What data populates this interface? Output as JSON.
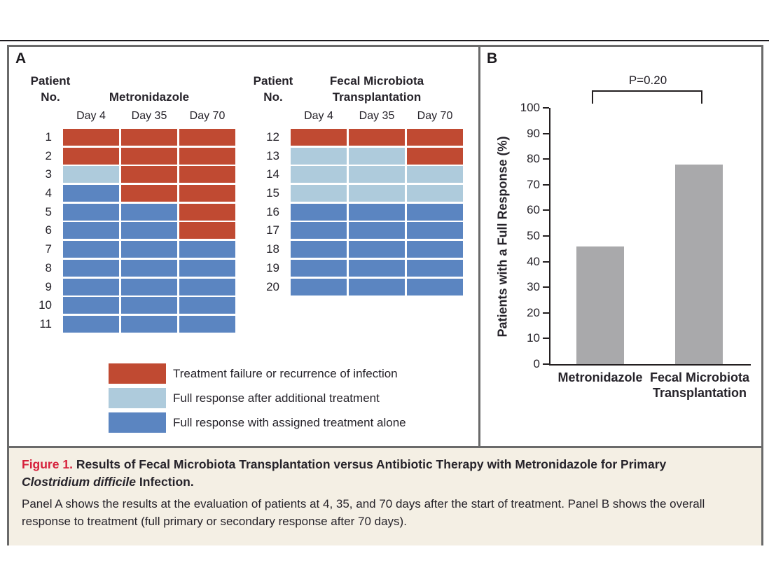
{
  "colors": {
    "failure": "#c04a32",
    "full_response_additional": "#aecbdc",
    "full_response_alone": "#5b85c1",
    "bar": "#a9a9ab",
    "border_gray": "#6a6a6a",
    "caption_bg": "#f4efe4",
    "figure_label_red": "#d6203b",
    "text": "#26232a"
  },
  "panel_a": {
    "label": "A",
    "patient_col_header": [
      "Patient",
      "No."
    ],
    "day_headers": [
      "Day 4",
      "Day 35",
      "Day 70"
    ],
    "grid_titles": [
      [
        "Metronidazole"
      ],
      [
        "Fecal Microbiota",
        "Transplantation"
      ]
    ],
    "legend": [
      {
        "key": "failure",
        "label": "Treatment failure or recurrence of infection"
      },
      {
        "key": "full_response_additional",
        "label": "Full response after additional treatment"
      },
      {
        "key": "full_response_alone",
        "label": "Full response with assigned treatment alone"
      }
    ]
  },
  "panel_b": {
    "label": "B",
    "p_value": "P=0.20",
    "ylabel": "Patients with a Full Response (%)",
    "categories": [
      [
        "Metronidazole"
      ],
      [
        "Fecal Microbiota",
        "Transplantation"
      ]
    ]
  },
  "caption": {
    "label": "Figure 1.",
    "title_main": "Results of Fecal Microbiota Transplantation versus Antibiotic Therapy with Metronidazole for Primary",
    "title_italic": "Clostridium difficile",
    "title_tail": "Infection.",
    "body": "Panel A shows the results at the evaluation of patients at 4, 35, and 70 days after the start of treatment. Panel B shows the overall response to treatment (full primary or secondary response after 70 days)."
  },
  "chart_data": [
    {
      "type": "heatmap",
      "title": "Metronidazole",
      "x": [
        "Day 4",
        "Day 35",
        "Day 70"
      ],
      "legend": {
        "failure": "Treatment failure or recurrence of infection",
        "full_response_additional": "Full response after additional treatment",
        "full_response_alone": "Full response with assigned treatment alone"
      },
      "rows": [
        {
          "patient": "1",
          "cells": [
            "failure",
            "failure",
            "failure"
          ]
        },
        {
          "patient": "2",
          "cells": [
            "failure",
            "failure",
            "failure"
          ]
        },
        {
          "patient": "3",
          "cells": [
            "full_response_additional",
            "failure",
            "failure"
          ]
        },
        {
          "patient": "4",
          "cells": [
            "full_response_alone",
            "failure",
            "failure"
          ]
        },
        {
          "patient": "5",
          "cells": [
            "full_response_alone",
            "full_response_alone",
            "failure"
          ]
        },
        {
          "patient": "6",
          "cells": [
            "full_response_alone",
            "full_response_alone",
            "failure"
          ]
        },
        {
          "patient": "7",
          "cells": [
            "full_response_alone",
            "full_response_alone",
            "full_response_alone"
          ]
        },
        {
          "patient": "8",
          "cells": [
            "full_response_alone",
            "full_response_alone",
            "full_response_alone"
          ]
        },
        {
          "patient": "9",
          "cells": [
            "full_response_alone",
            "full_response_alone",
            "full_response_alone"
          ]
        },
        {
          "patient": "10",
          "cells": [
            "full_response_alone",
            "full_response_alone",
            "full_response_alone"
          ]
        },
        {
          "patient": "11",
          "cells": [
            "full_response_alone",
            "full_response_alone",
            "full_response_alone"
          ]
        }
      ]
    },
    {
      "type": "heatmap",
      "title": "Fecal Microbiota Transplantation",
      "x": [
        "Day 4",
        "Day 35",
        "Day 70"
      ],
      "legend": {
        "failure": "Treatment failure or recurrence of infection",
        "full_response_additional": "Full response after additional treatment",
        "full_response_alone": "Full response with assigned treatment alone"
      },
      "rows": [
        {
          "patient": "12",
          "cells": [
            "failure",
            "failure",
            "failure"
          ]
        },
        {
          "patient": "13",
          "cells": [
            "full_response_additional",
            "full_response_additional",
            "failure"
          ]
        },
        {
          "patient": "14",
          "cells": [
            "full_response_additional",
            "full_response_additional",
            "full_response_additional"
          ]
        },
        {
          "patient": "15",
          "cells": [
            "full_response_additional",
            "full_response_additional",
            "full_response_additional"
          ]
        },
        {
          "patient": "16",
          "cells": [
            "full_response_alone",
            "full_response_alone",
            "full_response_alone"
          ]
        },
        {
          "patient": "17",
          "cells": [
            "full_response_alone",
            "full_response_alone",
            "full_response_alone"
          ]
        },
        {
          "patient": "18",
          "cells": [
            "full_response_alone",
            "full_response_alone",
            "full_response_alone"
          ]
        },
        {
          "patient": "19",
          "cells": [
            "full_response_alone",
            "full_response_alone",
            "full_response_alone"
          ]
        },
        {
          "patient": "20",
          "cells": [
            "full_response_alone",
            "full_response_alone",
            "full_response_alone"
          ]
        }
      ]
    },
    {
      "type": "bar",
      "categories": [
        "Metronidazole",
        "Fecal Microbiota Transplantation"
      ],
      "values": [
        46,
        78
      ],
      "title": "",
      "xlabel": "",
      "ylabel": "Patients with a Full Response (%)",
      "ylim": [
        0,
        100
      ],
      "ytick_step": 10,
      "annotation": "P=0.20",
      "bar_color": "#a9a9ab",
      "legend_position": "none",
      "grid": false
    }
  ]
}
